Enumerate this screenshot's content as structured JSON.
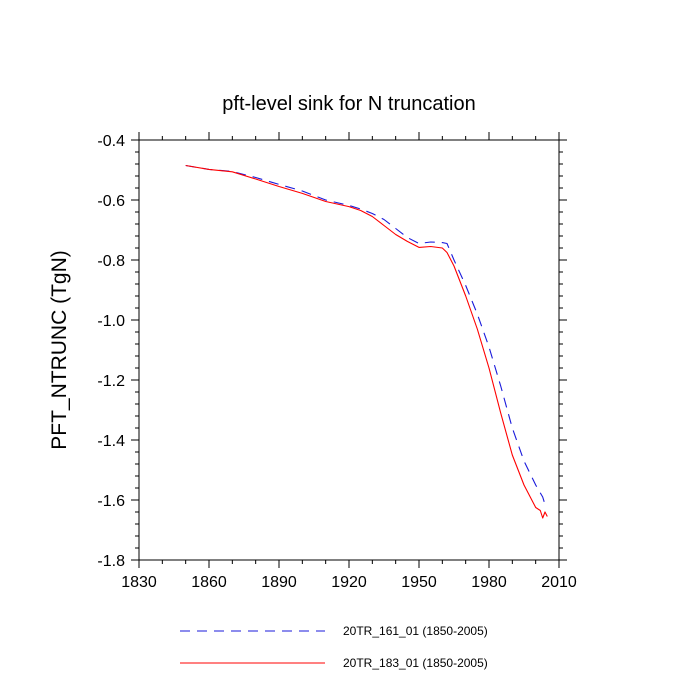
{
  "chart_data": {
    "type": "line",
    "title": "pft-level sink for N truncation",
    "xlabel": "",
    "ylabel": "PFT_NTRUNC  (TgN)",
    "xlim": [
      1830,
      2010
    ],
    "ylim": [
      -1.8,
      -0.4
    ],
    "x_ticks": [
      1830,
      1860,
      1890,
      1920,
      1950,
      1980,
      2010
    ],
    "y_ticks": [
      -0.4,
      -0.6,
      -0.8,
      -1.0,
      -1.2,
      -1.4,
      -1.6,
      -1.8
    ],
    "x_tick_labels": [
      "1830",
      "1860",
      "1890",
      "1920",
      "1950",
      "1980",
      "2010"
    ],
    "y_tick_labels": [
      "-0.4",
      "-0.6",
      "-0.8",
      "-1.0",
      "-1.2",
      "-1.4",
      "-1.6",
      "-1.8"
    ],
    "grid": false,
    "legend_position": "bottom",
    "series": [
      {
        "name": "20TR_161_01 (1850-2005)",
        "color": "#1a1adb",
        "dash": "dashed",
        "x": [
          1850,
          1860,
          1870,
          1880,
          1890,
          1900,
          1910,
          1920,
          1925,
          1930,
          1935,
          1940,
          1945,
          1950,
          1955,
          1960,
          1962,
          1965,
          1970,
          1975,
          1980,
          1985,
          1990,
          1995,
          2000,
          2003,
          2004
        ],
        "y": [
          -0.485,
          -0.498,
          -0.505,
          -0.525,
          -0.548,
          -0.57,
          -0.6,
          -0.618,
          -0.63,
          -0.645,
          -0.665,
          -0.695,
          -0.725,
          -0.745,
          -0.74,
          -0.742,
          -0.745,
          -0.8,
          -0.885,
          -0.98,
          -1.09,
          -1.22,
          -1.36,
          -1.47,
          -1.55,
          -1.59,
          -1.615
        ]
      },
      {
        "name": "20TR_183_01 (1850-2005)",
        "color": "#ff0000",
        "dash": "solid",
        "x": [
          1850,
          1860,
          1870,
          1880,
          1890,
          1900,
          1910,
          1920,
          1925,
          1930,
          1935,
          1940,
          1945,
          1950,
          1955,
          1960,
          1962,
          1965,
          1970,
          1975,
          1980,
          1985,
          1990,
          1995,
          2000,
          2002,
          2003,
          2004,
          2005
        ],
        "y": [
          -0.485,
          -0.498,
          -0.506,
          -0.53,
          -0.555,
          -0.578,
          -0.605,
          -0.622,
          -0.635,
          -0.655,
          -0.685,
          -0.715,
          -0.738,
          -0.758,
          -0.755,
          -0.76,
          -0.775,
          -0.82,
          -0.92,
          -1.03,
          -1.16,
          -1.31,
          -1.45,
          -1.55,
          -1.625,
          -1.635,
          -1.66,
          -1.64,
          -1.655
        ]
      }
    ]
  }
}
